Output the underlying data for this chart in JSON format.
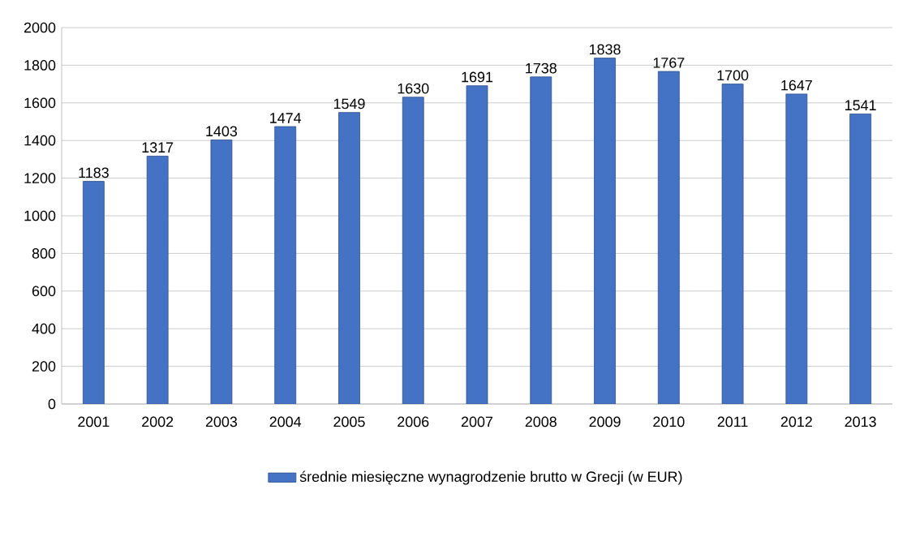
{
  "chart_data": {
    "type": "bar",
    "categories": [
      "2001",
      "2002",
      "2003",
      "2004",
      "2005",
      "2006",
      "2007",
      "2008",
      "2009",
      "2010",
      "2011",
      "2012",
      "2013"
    ],
    "series": [
      {
        "name": "średnie miesięczne wynagrodzenie brutto w Grecji (w EUR)",
        "color": "#4472c4",
        "values": [
          1183,
          1317,
          1403,
          1474,
          1549,
          1630,
          1691,
          1738,
          1838,
          1767,
          1700,
          1647,
          1541
        ]
      }
    ],
    "ylim": [
      0,
      2000
    ],
    "yticks": [
      0,
      200,
      400,
      600,
      800,
      1000,
      1200,
      1400,
      1600,
      1800,
      2000
    ],
    "grid": "y",
    "legend": "bottom",
    "data_labels": true
  }
}
